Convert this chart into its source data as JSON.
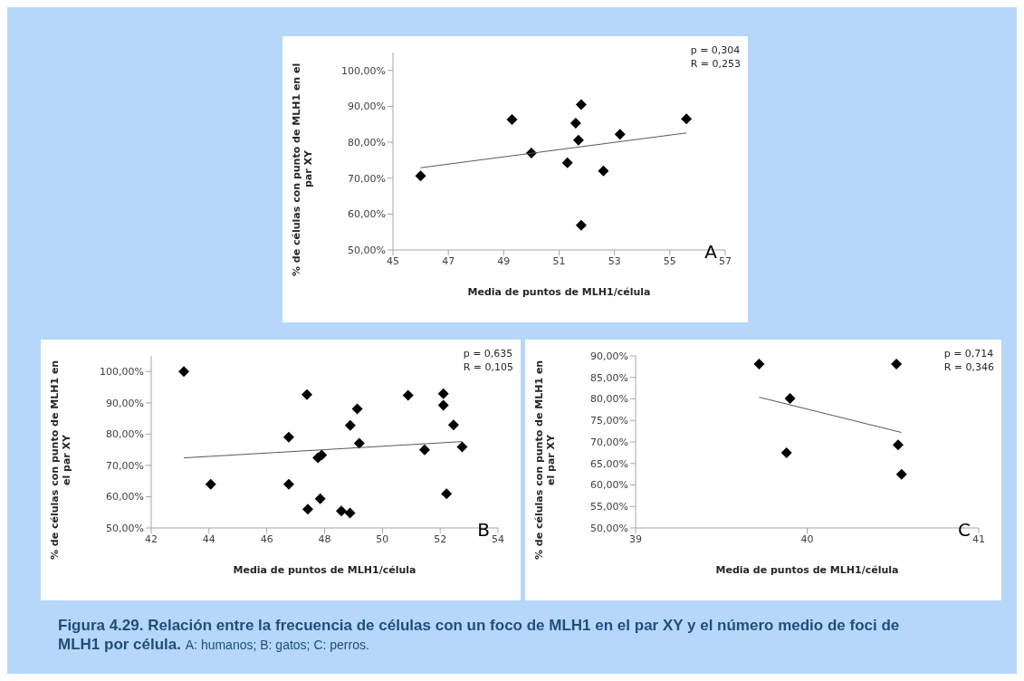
{
  "chart_data": [
    {
      "type": "scatter",
      "xlabel": "Media de puntos de MLH1/célula",
      "ylabel": "% de células con punto de MLH1 en el par XY",
      "xlim": [
        45,
        57
      ],
      "xticks": [
        45,
        47,
        49,
        51,
        53,
        55,
        57
      ],
      "ylim": [
        50,
        105
      ],
      "yticks": [
        {
          "value": 50,
          "label": "50,00%"
        },
        {
          "value": 60,
          "label": "60,00%"
        },
        {
          "value": 70,
          "label": "70,00%"
        },
        {
          "value": 80,
          "label": "80,00%"
        },
        {
          "value": 90,
          "label": "90,00%"
        },
        {
          "value": 100,
          "label": "100,00%"
        }
      ],
      "grid": false,
      "annotations": [
        "p = 0,304\nR = 0,253",
        "A"
      ],
      "series": [
        {
          "marker": "diamond",
          "color": "#000000",
          "x": [
            46.0,
            49.3,
            50.0,
            51.3,
            51.6,
            51.7,
            51.8,
            51.8,
            52.6,
            53.2,
            55.6
          ],
          "values": [
            70.6,
            86.3,
            77.0,
            74.3,
            85.3,
            80.6,
            90.5,
            56.9,
            72.0,
            82.2,
            86.5
          ]
        },
        {
          "type": "line",
          "marker": "none",
          "color": "#595959",
          "x": [
            46.0,
            55.6
          ],
          "values": [
            72.9,
            82.6
          ]
        }
      ]
    },
    {
      "type": "scatter",
      "xlabel": "Media de puntos de MLH1/célula",
      "ylabel": "% de células con punto de MLH1 en el par XY",
      "xlim": [
        42,
        54
      ],
      "xticks": [
        42,
        44,
        46,
        48,
        50,
        52,
        54
      ],
      "ylim": [
        50,
        105
      ],
      "yticks": [
        {
          "value": 50,
          "label": "50,00%"
        },
        {
          "value": 60,
          "label": "60,00%"
        },
        {
          "value": 70,
          "label": "70,00%"
        },
        {
          "value": 80,
          "label": "80,00%"
        },
        {
          "value": 90,
          "label": "90,00%"
        },
        {
          "value": 100,
          "label": "100,00%"
        }
      ],
      "grid": false,
      "annotations": [
        "p = 0,635\nR = 0,105",
        "B"
      ],
      "series": [
        {
          "marker": "diamond",
          "color": "#000000",
          "x": [
            43.13,
            44.06,
            46.76,
            46.76,
            47.39,
            47.42,
            47.77,
            47.9,
            47.85,
            48.58,
            48.88,
            48.89,
            49.13,
            49.2,
            50.89,
            51.46,
            52.11,
            52.11,
            52.22,
            52.46,
            52.76
          ],
          "values": [
            100.0,
            64.0,
            79.0,
            64.0,
            92.6,
            56.0,
            72.4,
            73.3,
            59.3,
            55.4,
            54.8,
            82.8,
            88.1,
            77.1,
            92.4,
            75.0,
            92.9,
            89.2,
            60.9,
            82.9,
            75.9
          ]
        },
        {
          "type": "line",
          "marker": "none",
          "color": "#595959",
          "x": [
            43.13,
            52.76
          ],
          "values": [
            72.4,
            77.6
          ]
        }
      ]
    },
    {
      "type": "scatter",
      "xlabel": "Media de puntos de MLH1/célula",
      "ylabel": "% de células con punto de MLH1 en el par XY",
      "xlim": [
        39,
        41
      ],
      "xticks": [
        39,
        40,
        41
      ],
      "ylim": [
        50,
        90
      ],
      "yticks": [
        {
          "value": 50,
          "label": "50,00%"
        },
        {
          "value": 55,
          "label": "55,00%"
        },
        {
          "value": 60,
          "label": "60,00%"
        },
        {
          "value": 65,
          "label": "65,00%"
        },
        {
          "value": 70,
          "label": "70,00%"
        },
        {
          "value": 75,
          "label": "75,00%"
        },
        {
          "value": 80,
          "label": "80,00%"
        },
        {
          "value": 85,
          "label": "85,00%"
        },
        {
          "value": 90,
          "label": "90,00%"
        }
      ],
      "grid": false,
      "annotations": [
        "p = 0,714\nR = 0,346",
        "C",
        "Figura 4.29. Relación entre la frecuencia de células con un foco de MLH1 en el par XY y el número medio de foci de MLH1 por célula.",
        "A: humanos; B: gatos; C: perros."
      ],
      "series": [
        {
          "marker": "diamond",
          "color": "#000000",
          "x": [
            39.72,
            39.9,
            39.88,
            40.52,
            40.53,
            40.55
          ],
          "values": [
            88.1,
            80.1,
            67.5,
            88.1,
            69.3,
            62.5
          ]
        },
        {
          "type": "line",
          "marker": "none",
          "color": "#595959",
          "x": [
            39.72,
            40.55
          ],
          "values": [
            80.4,
            72.2
          ]
        }
      ]
    }
  ]
}
